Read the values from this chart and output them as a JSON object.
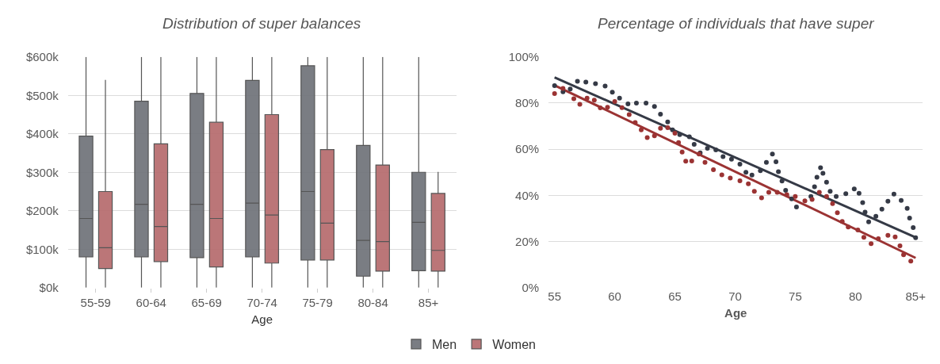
{
  "chart_data": [
    {
      "type": "box",
      "title": "Distribution of super balances",
      "xlabel": "Age",
      "categories": [
        "55-59",
        "60-64",
        "65-69",
        "70-74",
        "75-79",
        "80-84",
        "85+"
      ],
      "ylim": [
        0,
        600
      ],
      "yticks": [
        {
          "value": 0,
          "label": "$0k"
        },
        {
          "value": 100,
          "label": "$100k"
        },
        {
          "value": 200,
          "label": "$200k"
        },
        {
          "value": 300,
          "label": "$300k"
        },
        {
          "value": 400,
          "label": "$400k"
        },
        {
          "value": 500,
          "label": "$500k"
        },
        {
          "value": 600,
          "label": "$600k"
        }
      ],
      "grid": "y",
      "legend": "bottom",
      "series": [
        {
          "name": "Men",
          "color": "#6f7278",
          "boxes": [
            {
              "low": 0,
              "q1": 80,
              "median": 180,
              "q3": 394,
              "high": 600
            },
            {
              "low": 0,
              "q1": 80,
              "median": 217,
              "q3": 485,
              "high": 600
            },
            {
              "low": 0,
              "q1": 78,
              "median": 217,
              "q3": 505,
              "high": 600
            },
            {
              "low": 0,
              "q1": 80,
              "median": 220,
              "q3": 539,
              "high": 600
            },
            {
              "low": 0,
              "q1": 72,
              "median": 250,
              "q3": 577,
              "high": 600
            },
            {
              "low": 0,
              "q1": 30,
              "median": 123,
              "q3": 370,
              "high": 600
            },
            {
              "low": 0,
              "q1": 44,
              "median": 170,
              "q3": 300,
              "high": 600
            }
          ]
        },
        {
          "name": "Women",
          "color": "#b56a6c",
          "boxes": [
            {
              "low": 0,
              "q1": 50,
              "median": 104,
              "q3": 250,
              "high": 540
            },
            {
              "low": 0,
              "q1": 68,
              "median": 159,
              "q3": 374,
              "high": 600
            },
            {
              "low": 0,
              "q1": 54,
              "median": 180,
              "q3": 430,
              "high": 600
            },
            {
              "low": 0,
              "q1": 64,
              "median": 189,
              "q3": 450,
              "high": 600
            },
            {
              "low": 0,
              "q1": 72,
              "median": 168,
              "q3": 359,
              "high": 600
            },
            {
              "low": 0,
              "q1": 43,
              "median": 120,
              "q3": 319,
              "high": 600
            },
            {
              "low": 0,
              "q1": 43,
              "median": 97,
              "q3": 245,
              "high": 301
            }
          ]
        }
      ]
    },
    {
      "type": "scatter",
      "title": "Percentage of individuals that have super",
      "xlabel": "Age",
      "xlim": [
        54.5,
        85.6
      ],
      "xticks": [
        55,
        60,
        65,
        70,
        75,
        80,
        {
          "value": 85,
          "label": "85+"
        }
      ],
      "ylim": [
        0,
        100
      ],
      "yticks": [
        {
          "value": 0,
          "label": "0%"
        },
        {
          "value": 20,
          "label": "20%"
        },
        {
          "value": 40,
          "label": "40%"
        },
        {
          "value": 60,
          "label": "60%"
        },
        {
          "value": 80,
          "label": "80%"
        },
        {
          "value": 100,
          "label": "100%"
        }
      ],
      "grid": "y",
      "legend": false,
      "marker": "circle",
      "series": [
        {
          "color": "#353a46",
          "x": [
            55.0,
            55.7,
            56.3,
            56.9,
            57.6,
            58.4,
            59.2,
            59.8,
            60.4,
            61.1,
            61.8,
            62.6,
            63.3,
            63.8,
            64.4,
            64.8,
            65.4,
            66.2,
            66.6,
            67.1,
            67.7,
            68.4,
            69.0,
            69.7,
            70.4,
            70.9,
            71.4,
            72.1,
            72.6,
            73.1,
            73.4,
            73.6,
            73.9,
            74.2,
            74.7,
            75.1,
            76.3,
            76.6,
            76.8,
            77.1,
            77.3,
            77.6,
            77.9,
            78.4,
            79.2,
            79.9,
            80.3,
            80.6,
            80.8,
            81.1,
            81.7,
            82.2,
            82.7,
            83.2,
            83.8,
            84.3,
            84.5,
            84.8,
            85.0
          ],
          "values": [
            87.5,
            84.9,
            86.1,
            89.4,
            89.1,
            88.4,
            87.4,
            84.7,
            82.1,
            79.6,
            80.0,
            80.0,
            78.5,
            75.2,
            71.8,
            68.4,
            66.3,
            65.4,
            62.1,
            58.4,
            60.4,
            59.7,
            56.8,
            55.7,
            53.5,
            50.0,
            48.8,
            50.7,
            54.3,
            57.9,
            54.6,
            50.3,
            46.2,
            42.2,
            38.5,
            35.0,
            39.5,
            43.7,
            47.9,
            52.0,
            49.6,
            45.7,
            41.8,
            39.5,
            40.7,
            42.8,
            40.9,
            36.9,
            32.7,
            28.5,
            30.9,
            34.0,
            37.5,
            40.6,
            37.8,
            34.4,
            30.2,
            26.0,
            21.7
          ]
        },
        {
          "color": "#9b3333",
          "x": [
            55.0,
            55.7,
            56.6,
            57.1,
            57.7,
            58.3,
            58.8,
            59.4,
            60.0,
            60.6,
            61.2,
            61.7,
            62.2,
            62.7,
            63.3,
            63.8,
            64.4,
            65.0,
            65.3,
            65.6,
            65.9,
            66.4,
            67.0,
            67.5,
            68.2,
            68.9,
            69.6,
            70.4,
            71.1,
            71.6,
            72.2,
            72.8,
            73.5,
            74.3,
            75.0,
            75.8,
            76.4,
            77.0,
            77.6,
            78.1,
            78.5,
            78.9,
            79.4,
            80.2,
            80.7,
            81.3,
            81.9,
            82.7,
            83.3,
            83.7,
            84.0,
            84.6
          ],
          "values": [
            84.1,
            86.3,
            81.9,
            79.5,
            82.1,
            81.3,
            77.9,
            78.2,
            80.7,
            78.0,
            75.0,
            71.6,
            68.4,
            65.0,
            65.8,
            69.1,
            69.3,
            66.9,
            62.9,
            58.8,
            54.8,
            54.9,
            57.9,
            54.3,
            51.1,
            48.9,
            47.5,
            46.3,
            45.0,
            41.8,
            38.9,
            41.3,
            41.3,
            40.3,
            39.5,
            37.6,
            38.2,
            41.3,
            39.5,
            36.4,
            32.5,
            28.7,
            26.3,
            25.0,
            21.8,
            19.1,
            21.2,
            22.7,
            22.0,
            18.1,
            14.3,
            11.5
          ]
        },
        {
          "type": "line",
          "marker": "none",
          "color": "#353a46",
          "x": [
            55,
            85
          ],
          "values": [
            91.1,
            21.8
          ]
        },
        {
          "type": "line",
          "marker": "none",
          "color": "#9b3333",
          "x": [
            55,
            85
          ],
          "values": [
            87.7,
            12.9
          ]
        }
      ]
    }
  ]
}
